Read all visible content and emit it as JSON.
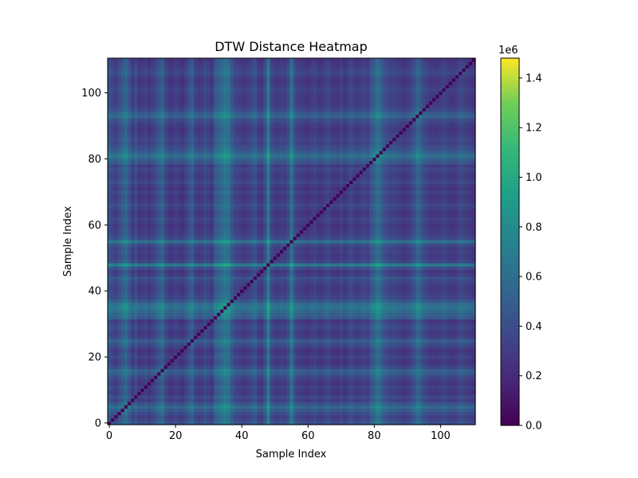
{
  "chart_data": {
    "type": "heatmap",
    "title": "DTW Distance Heatmap",
    "xlabel": "Sample Index",
    "ylabel": "Sample Index",
    "n": 111,
    "xlim": [
      -0.5,
      110.5
    ],
    "ylim": [
      -0.5,
      110.5
    ],
    "xticks": [
      0,
      20,
      40,
      60,
      80,
      100
    ],
    "yticks": [
      0,
      20,
      40,
      60,
      80,
      100
    ],
    "xtick_labels": [
      "0",
      "20",
      "40",
      "60",
      "80",
      "100"
    ],
    "ytick_labels": [
      "0",
      "20",
      "40",
      "60",
      "80",
      "100"
    ],
    "colormap": "viridis",
    "diagonal_value": 0,
    "colorbar": {
      "min": 0,
      "max": 1.48,
      "ticks": [
        0.0,
        0.2,
        0.4,
        0.6,
        0.8,
        1.0,
        1.2,
        1.4
      ],
      "tick_labels": [
        "0.0",
        "0.2",
        "0.4",
        "0.6",
        "0.8",
        "1.0",
        "1.2",
        "1.4"
      ],
      "offset_label": "1e6"
    },
    "row_profile_note": "Symmetric DTW distance matrix: value(i,j) ≈ min(1.48, 0.5*(p[i]+p[j])), zero on the diagonal; p is the per-sample profile (units of 1e6).",
    "profile": [
      0.52,
      0.4,
      0.33,
      0.48,
      0.62,
      0.78,
      0.55,
      0.3,
      0.44,
      0.25,
      0.28,
      0.36,
      0.22,
      0.31,
      0.42,
      0.58,
      0.7,
      0.4,
      0.26,
      0.23,
      0.35,
      0.28,
      0.2,
      0.33,
      0.5,
      0.64,
      0.36,
      0.27,
      0.3,
      0.42,
      0.32,
      0.24,
      0.62,
      0.72,
      0.82,
      0.95,
      0.88,
      0.6,
      0.4,
      0.34,
      0.3,
      0.26,
      0.33,
      0.4,
      0.52,
      0.3,
      0.24,
      0.46,
      1.02,
      0.4,
      0.3,
      0.27,
      0.34,
      0.3,
      0.44,
      0.92,
      0.46,
      0.34,
      0.3,
      0.26,
      0.22,
      0.3,
      0.36,
      0.25,
      0.23,
      0.32,
      0.42,
      0.3,
      0.26,
      0.24,
      0.34,
      0.22,
      0.3,
      0.42,
      0.32,
      0.26,
      0.34,
      0.4,
      0.3,
      0.55,
      0.68,
      0.9,
      0.72,
      0.52,
      0.44,
      0.36,
      0.4,
      0.32,
      0.28,
      0.24,
      0.3,
      0.36,
      0.5,
      0.74,
      0.62,
      0.42,
      0.34,
      0.28,
      0.3,
      0.26,
      0.32,
      0.38,
      0.3,
      0.26,
      0.24,
      0.3,
      0.44,
      0.38,
      0.3,
      0.26,
      0.22
    ]
  }
}
